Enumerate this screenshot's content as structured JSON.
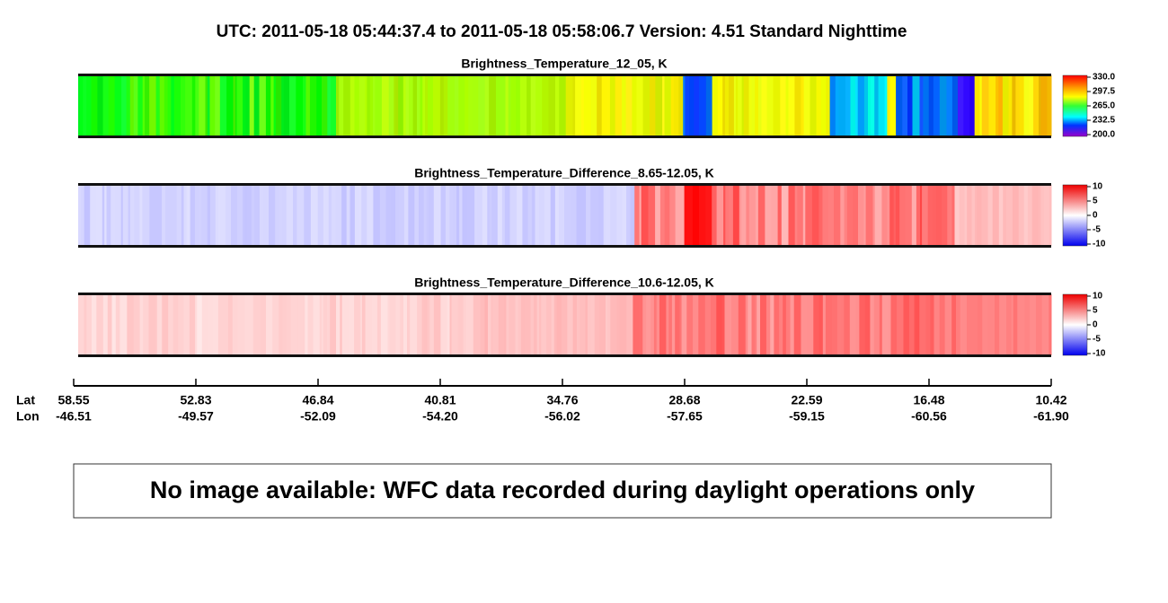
{
  "header": {
    "title": "UTC:  2011-05-18   05:44:37.4  to  2011-05-18   05:58:06.7    Version: 4.51  Standard Nighttime"
  },
  "panels": [
    {
      "title": "Brightness_Temperature_12_05, K",
      "colorbar": [
        "330.0",
        "297.5",
        "265.0",
        "232.5",
        "200.0"
      ]
    },
    {
      "title": "Brightness_Temperature_Difference_8.65-12.05, K",
      "colorbar": [
        "10",
        "5",
        "0",
        "-5",
        "-10"
      ]
    },
    {
      "title": "Brightness_Temperature_Difference_10.6-12.05, K",
      "colorbar": [
        "10",
        "5",
        "0",
        "-5",
        "-10"
      ]
    }
  ],
  "axis": {
    "lat_label": "Lat",
    "lon_label": "Lon",
    "lat": [
      "58.55",
      "52.83",
      "46.84",
      "40.81",
      "34.76",
      "28.68",
      "22.59",
      "16.48",
      "10.42"
    ],
    "lon": [
      "-46.51",
      "-49.57",
      "-52.09",
      "-54.20",
      "-56.02",
      "-57.65",
      "-59.15",
      "-60.56",
      "-61.90"
    ]
  },
  "message": "No image available: WFC data recorded during daylight operations only"
}
